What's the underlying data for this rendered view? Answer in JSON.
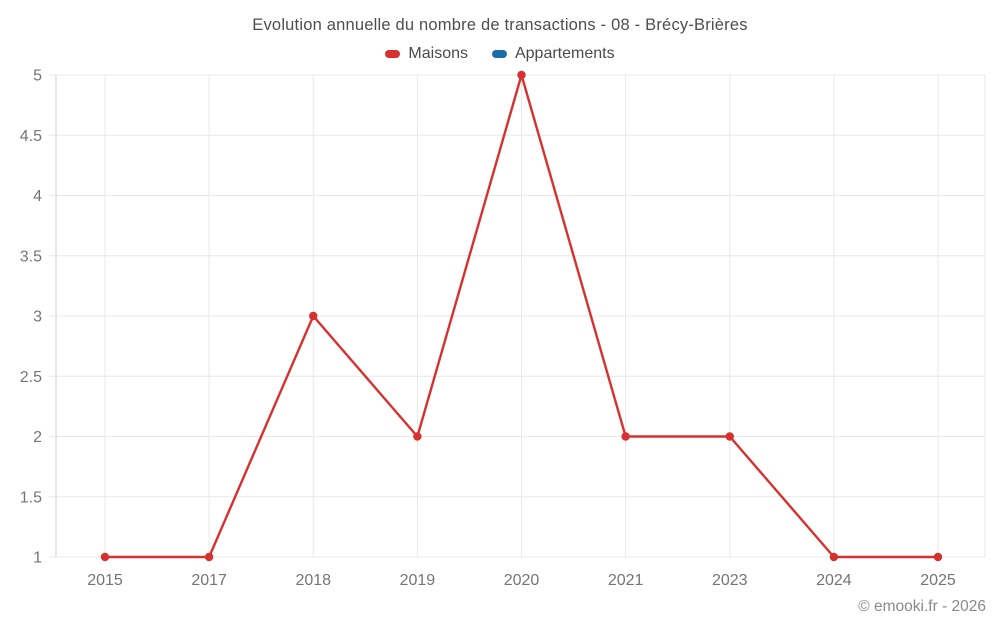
{
  "footer": {
    "copyright": "© emooki.fr - 2026"
  },
  "chart_data": {
    "type": "line",
    "title": "Evolution annuelle du nombre de transactions - 08 - Brécy-Brières",
    "categories": [
      "2015",
      "2017",
      "2018",
      "2019",
      "2020",
      "2021",
      "2023",
      "2024",
      "2025"
    ],
    "series": [
      {
        "name": "Maisons",
        "color": "#d7312f",
        "values": [
          1,
          1,
          3,
          2,
          5,
          2,
          2,
          1,
          1
        ]
      },
      {
        "name": "Appartements",
        "color": "#1b6ca8",
        "values": []
      }
    ],
    "xlabel": "",
    "ylabel": "",
    "ylim": [
      1,
      5
    ],
    "yticks": [
      1,
      1.5,
      2,
      2.5,
      3,
      3.5,
      4,
      4.5,
      5
    ],
    "grid": true,
    "legend_position": "top",
    "colors": {
      "gridline": "#e8e8e8",
      "axis_line": "#cfcfcf",
      "tick_label": "#757575",
      "title_text": "#4e4e4e",
      "legend_text": "#4a4a4a",
      "footer_text": "#8a8a8a"
    }
  }
}
